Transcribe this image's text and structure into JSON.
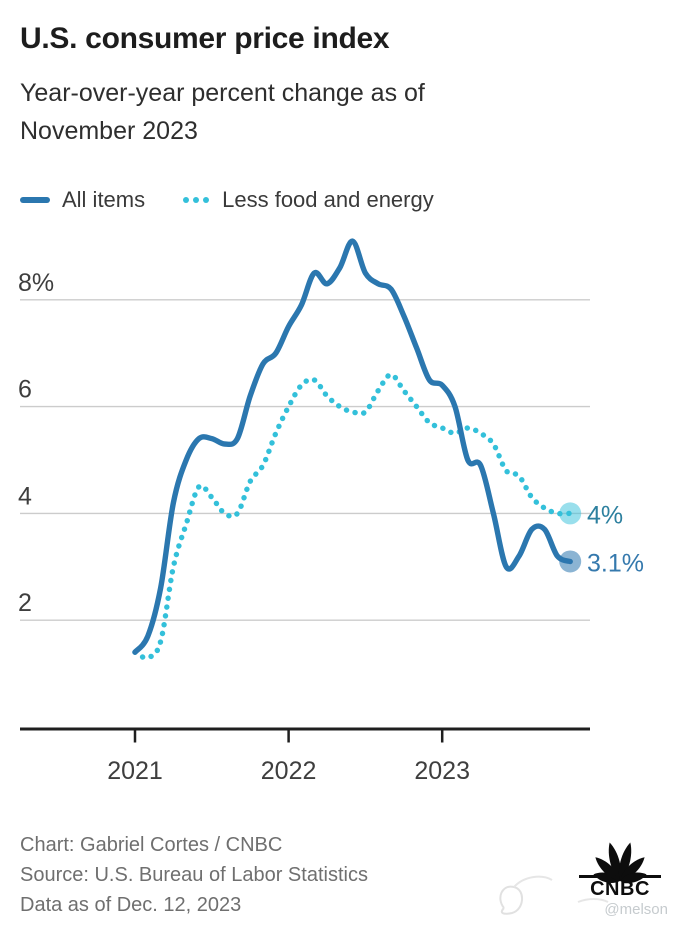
{
  "header": {
    "title": "U.S. consumer price index",
    "subtitle_lines": [
      "Year-over-year percent change as of",
      "November 2023"
    ]
  },
  "legend": {
    "items": [
      {
        "label": "All items",
        "marker": "solid-line",
        "color": "#2b77af"
      },
      {
        "label": "Less food and energy",
        "marker": "dotted-line",
        "color": "#33c0da"
      }
    ]
  },
  "chart_data": {
    "type": "line",
    "title": "U.S. consumer price index",
    "subtitle": "Year-over-year percent change as of November 2023",
    "xlabel": "",
    "ylabel": "Year-over-year percent change",
    "ylim": [
      0,
      9.6
    ],
    "grid": true,
    "legend_position": "top",
    "x": [
      "Jan 2021",
      "Feb 2021",
      "Mar 2021",
      "Apr 2021",
      "May 2021",
      "Jun 2021",
      "Jul 2021",
      "Aug 2021",
      "Sep 2021",
      "Oct 2021",
      "Nov 2021",
      "Dec 2021",
      "Jan 2022",
      "Feb 2022",
      "Mar 2022",
      "Apr 2022",
      "May 2022",
      "Jun 2022",
      "Jul 2022",
      "Aug 2022",
      "Sep 2022",
      "Oct 2022",
      "Nov 2022",
      "Dec 2022",
      "Jan 2023",
      "Feb 2023",
      "Mar 2023",
      "Apr 2023",
      "May 2023",
      "Jun 2023",
      "Jul 2023",
      "Aug 2023",
      "Sep 2023",
      "Oct 2023",
      "Nov 2023"
    ],
    "series": [
      {
        "name": "Less food and energy",
        "style": "dotted",
        "color": "#33c0da",
        "dot_color": "rgba(51,192,218,0.5)",
        "end_label": "4%",
        "end_label_color": "#2d809f",
        "values": [
          1.4,
          1.3,
          1.6,
          3.0,
          3.8,
          4.5,
          4.3,
          4.0,
          4.0,
          4.6,
          4.9,
          5.5,
          6.0,
          6.4,
          6.5,
          6.2,
          6.0,
          5.9,
          5.9,
          6.3,
          6.6,
          6.3,
          6.0,
          5.7,
          5.6,
          5.5,
          5.6,
          5.5,
          5.3,
          4.8,
          4.7,
          4.3,
          4.1,
          4.0,
          4.0
        ]
      },
      {
        "name": "All items",
        "style": "solid",
        "color": "#2b77af",
        "dot_color": "rgba(43,119,175,0.55)",
        "end_label": "3.1%",
        "end_label_color": "#3579ad",
        "values": [
          1.4,
          1.7,
          2.6,
          4.2,
          5.0,
          5.4,
          5.4,
          5.3,
          5.4,
          6.2,
          6.8,
          7.0,
          7.5,
          7.9,
          8.5,
          8.3,
          8.6,
          9.1,
          8.5,
          8.3,
          8.2,
          7.7,
          7.1,
          6.5,
          6.4,
          6.0,
          5.0,
          4.9,
          4.0,
          3.0,
          3.2,
          3.7,
          3.7,
          3.2,
          3.1
        ]
      }
    ],
    "yticks": [
      {
        "value": 8,
        "label": "8%"
      },
      {
        "value": 6,
        "label": "6"
      },
      {
        "value": 4,
        "label": "4"
      },
      {
        "value": 2,
        "label": "2"
      }
    ],
    "xticks": [
      {
        "month_index": 0,
        "label": "2021"
      },
      {
        "month_index": 12,
        "label": "2022"
      },
      {
        "month_index": 24,
        "label": "2023"
      }
    ],
    "colors": {
      "gridline": "#cccccc",
      "axis": "#1f1f1f",
      "tick_label": "#3e3e3e"
    }
  },
  "footer": {
    "credit": "Chart: Gabriel Cortes / CNBC",
    "source": "Source: U.S. Bureau of Labor Statistics",
    "as_of": "Data as of Dec. 12, 2023",
    "logo_text": "CNBC",
    "watermark": "@melson"
  }
}
